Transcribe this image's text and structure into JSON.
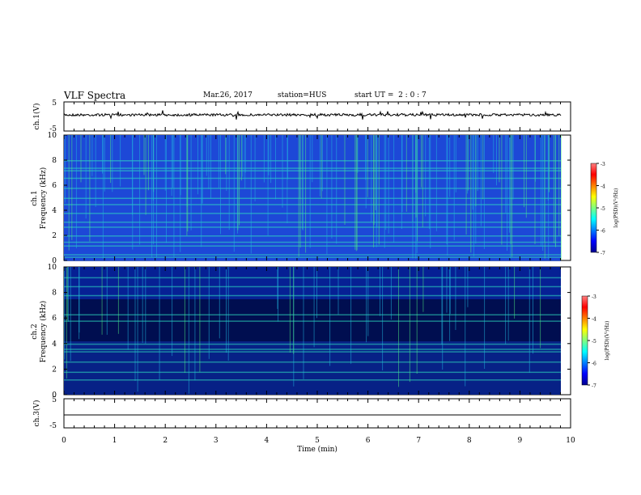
{
  "header": {
    "title": "VLF Spectra",
    "date": "Mar.26, 2017",
    "station": "station=HUS",
    "start": "start UT =  2 : 0 : 7"
  },
  "chart_data": [
    {
      "type": "line",
      "id": "ch1",
      "ylabel": "ch.1(V)",
      "ylim": [
        -5,
        5
      ],
      "yticks": [
        "5",
        "-5"
      ],
      "xlim": [
        0,
        10
      ],
      "note": "time-series voltage trace near 0 V"
    },
    {
      "type": "heatmap",
      "id": "ch1_spec",
      "ylabel_line1": "ch.1",
      "ylabel_line2": "Frequency (kHz)",
      "ylim": [
        0,
        10
      ],
      "yticks": [
        "0",
        "2",
        "4",
        "6",
        "8",
        "10"
      ],
      "xlim": [
        0,
        10
      ],
      "colorbar": {
        "label": "log(PSD)(V²/Hz)",
        "range": [
          -7,
          -3
        ],
        "ticks": [
          "-3",
          "-4",
          "-5",
          "-6",
          "-7"
        ]
      }
    },
    {
      "type": "heatmap",
      "id": "ch2_spec",
      "ylabel_line1": "ch.2",
      "ylabel_line2": "Frequency (kHz)",
      "ylim": [
        0,
        10
      ],
      "yticks": [
        "0",
        "2",
        "4",
        "6",
        "8",
        "10"
      ],
      "xlim": [
        0,
        10
      ],
      "colorbar": {
        "label": "log(PSD)(V²/Hz)",
        "range": [
          -7,
          -3
        ],
        "ticks": [
          "-3",
          "-4",
          "-5",
          "-6",
          "-7"
        ]
      }
    },
    {
      "type": "line",
      "id": "ch3",
      "ylabel": "ch.3(V)",
      "ylim": [
        -5,
        5
      ],
      "yticks": [
        "5",
        "-5"
      ],
      "xlim": [
        0,
        10
      ],
      "xlabel": "Time (min)",
      "xticks": [
        "0",
        "1",
        "2",
        "3",
        "4",
        "5",
        "6",
        "7",
        "8",
        "9",
        "10"
      ],
      "note": "flat trace near -1.5 V"
    }
  ]
}
